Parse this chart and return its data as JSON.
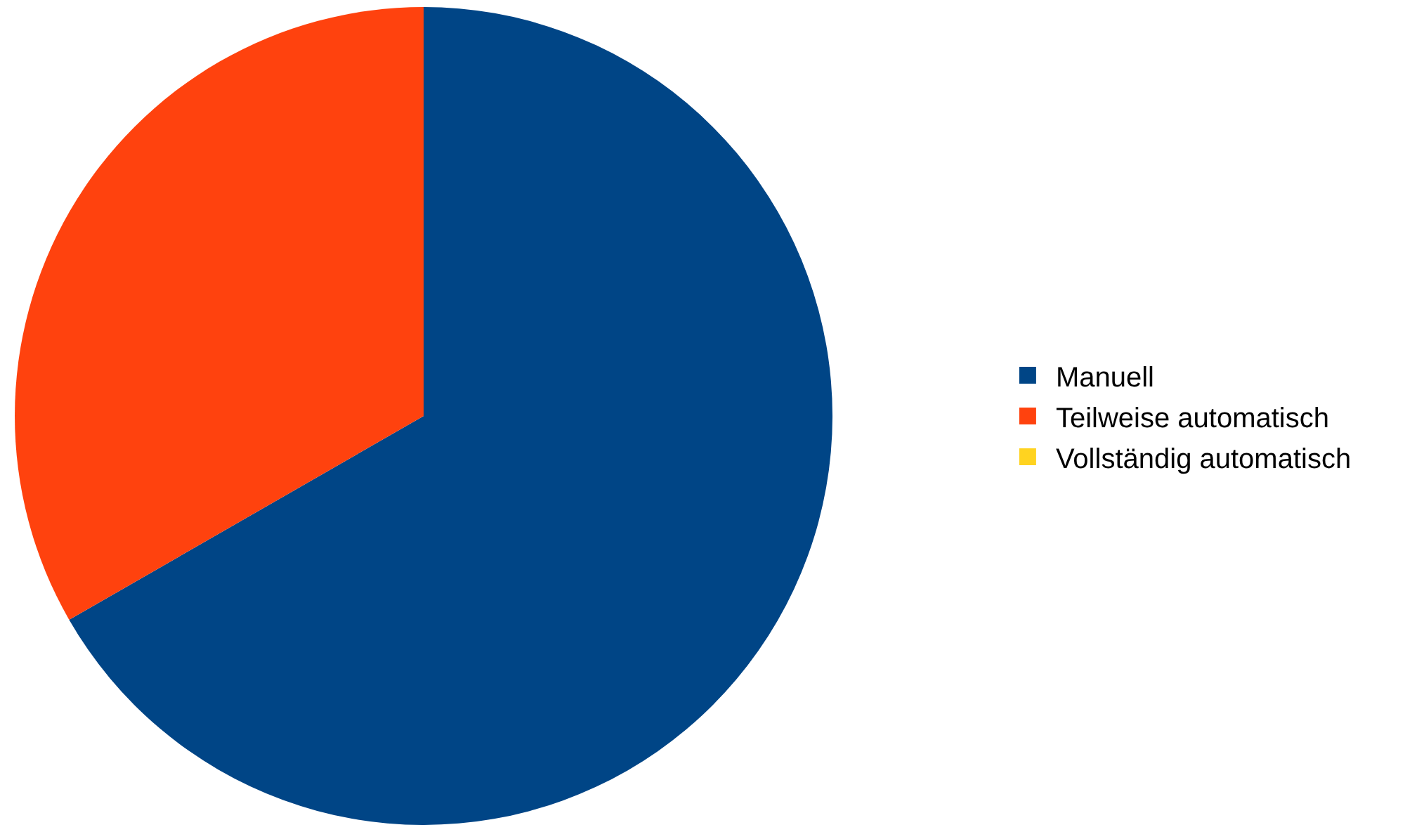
{
  "chart_data": {
    "type": "pie",
    "categories": [
      "Manuell",
      "Teilweise automatisch",
      "Vollständig automatisch"
    ],
    "values": [
      66.7,
      33.3,
      0
    ],
    "colors": [
      "#004586",
      "#ff420e",
      "#ffd320"
    ],
    "legend": "right"
  }
}
